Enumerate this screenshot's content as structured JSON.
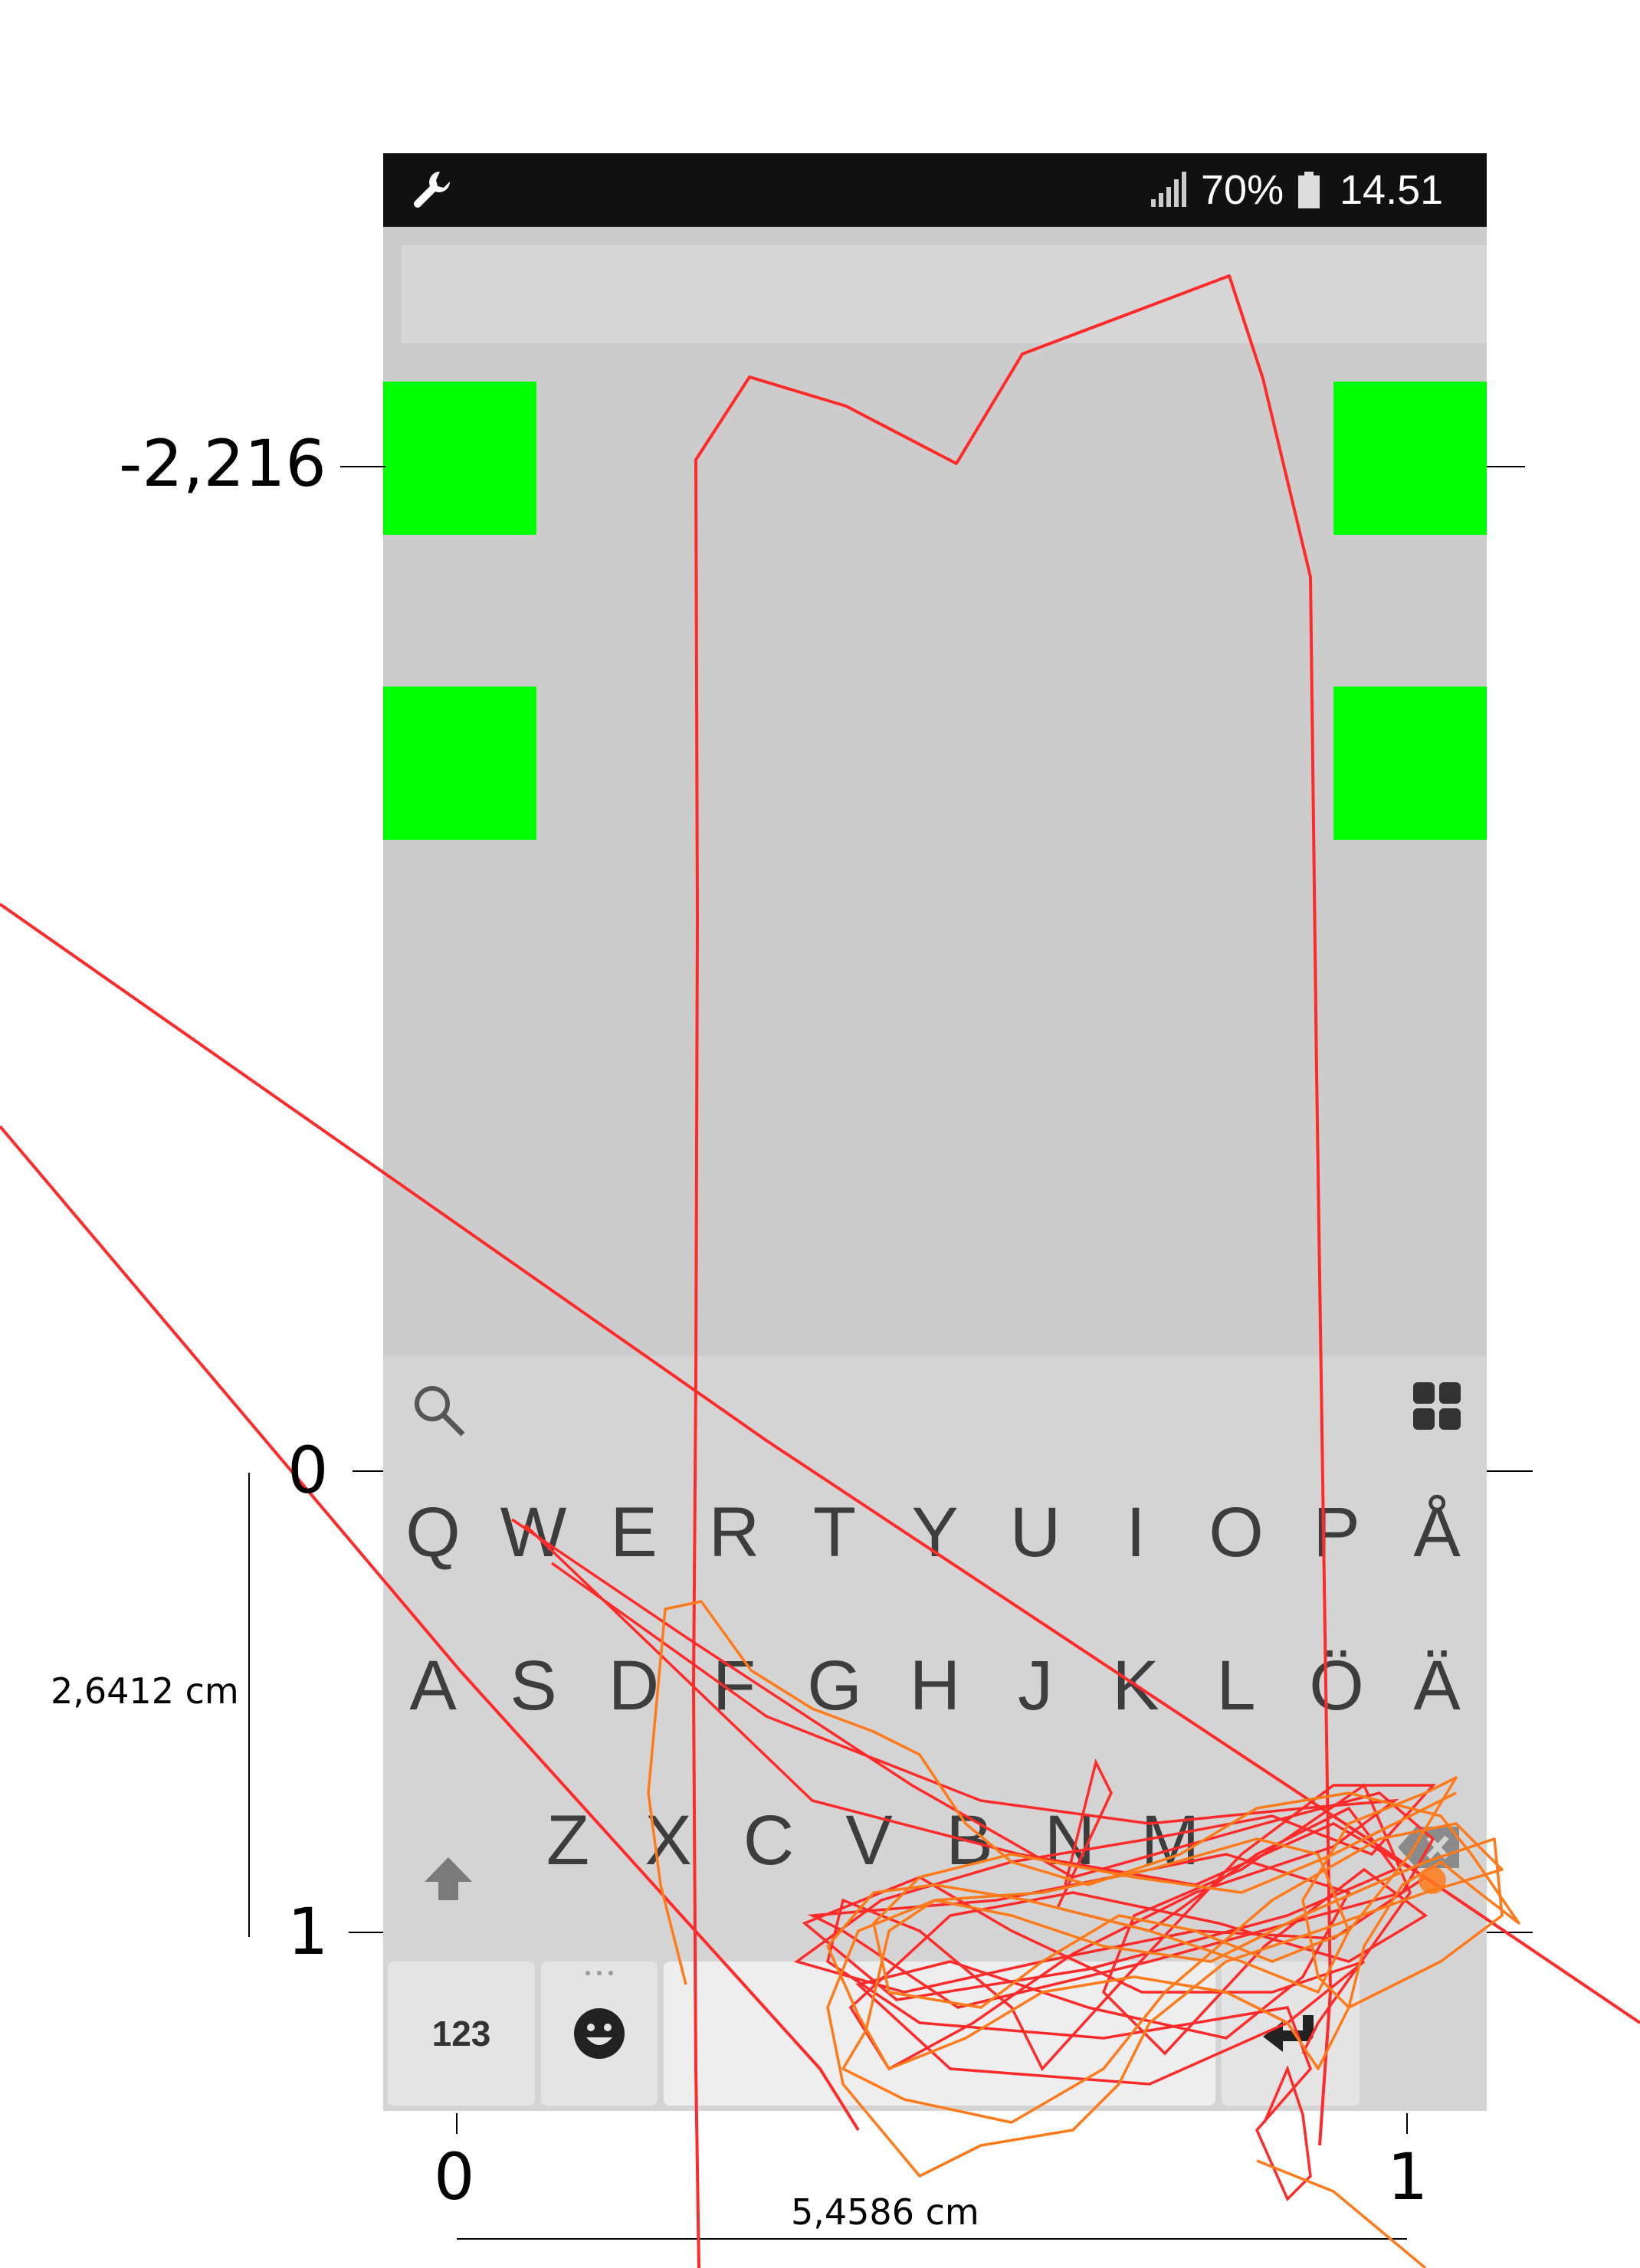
{
  "status_bar": {
    "left_icon": "wrench-icon",
    "signal_icon": "signal-bars-icon",
    "battery_percent": "70%",
    "battery_icon": "battery-icon",
    "time": "14.51"
  },
  "keyboard": {
    "search_icon": "search-icon",
    "apps_icon": "grid-icon",
    "row1": [
      "Q",
      "W",
      "E",
      "R",
      "T",
      "Y",
      "U",
      "I",
      "O",
      "P",
      "Å"
    ],
    "row2": [
      "A",
      "S",
      "D",
      "F",
      "G",
      "H",
      "J",
      "K",
      "L",
      "Ö",
      "Ä"
    ],
    "row3": [
      "Z",
      "X",
      "C",
      "V",
      "B",
      "N",
      "M"
    ],
    "shift_icon": "shift-arrow-icon",
    "backspace_icon": "backspace-icon",
    "numbers_label": "123",
    "emoji_icon": "smiley-icon",
    "enter_icon": "enter-arrow-icon"
  },
  "annotations": {
    "y_top_label": "-2,216",
    "y_zero_label": "0",
    "y_one_label": "1",
    "x_zero_label": "0",
    "x_one_label": "1",
    "height_measure": "2,6412 cm",
    "width_measure": "5,4586 cm"
  },
  "colors": {
    "target": "#00ff00",
    "trace_red": "#ff2a2a",
    "trace_orange": "#ff7a1a"
  }
}
